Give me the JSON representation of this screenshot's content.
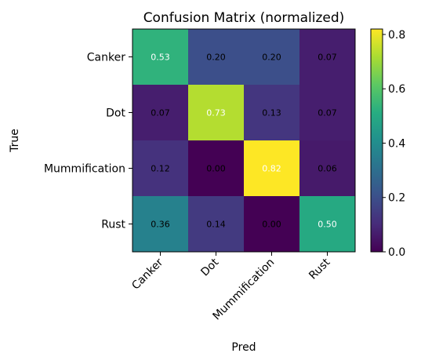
{
  "chart_data": {
    "type": "heatmap",
    "title": "Confusion Matrix (normalized)",
    "xlabel": "Pred",
    "ylabel": "True",
    "x_categories": [
      "Canker",
      "Dot",
      "Mummification",
      "Rust"
    ],
    "y_categories": [
      "Canker",
      "Dot",
      "Mummification",
      "Rust"
    ],
    "values": [
      [
        0.53,
        0.2,
        0.2,
        0.07
      ],
      [
        0.07,
        0.73,
        0.13,
        0.07
      ],
      [
        0.12,
        0.0,
        0.82,
        0.06
      ],
      [
        0.36,
        0.14,
        0.0,
        0.5
      ]
    ],
    "cell_labels": [
      [
        "0.53",
        "0.20",
        "0.20",
        "0.07"
      ],
      [
        "0.07",
        "0.73",
        "0.13",
        "0.07"
      ],
      [
        "0.12",
        "0.00",
        "0.82",
        "0.06"
      ],
      [
        "0.36",
        "0.14",
        "0.00",
        "0.50"
      ]
    ],
    "colormap": "viridis",
    "vmin": 0.0,
    "vmax": 0.82,
    "colorbar_ticks": [
      "0.0",
      "0.2",
      "0.4",
      "0.6",
      "0.8"
    ],
    "colorbar_tick_values": [
      0.0,
      0.2,
      0.4,
      0.6,
      0.8
    ],
    "grid": false
  }
}
